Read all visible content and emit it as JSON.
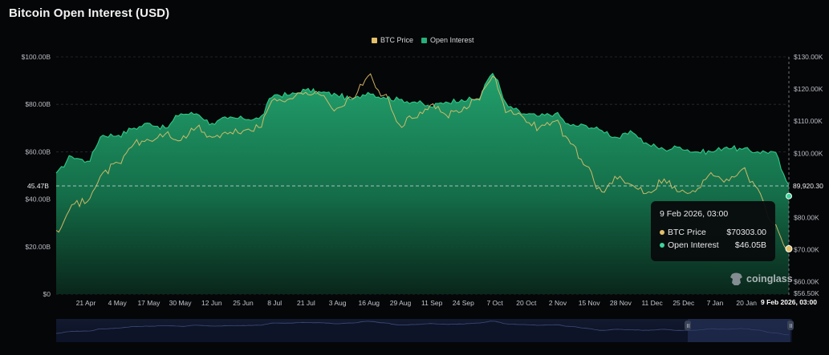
{
  "title": "Bitcoin Open Interest (USD)",
  "legend": [
    {
      "label": "BTC Price",
      "color": "#e2c06a"
    },
    {
      "label": "Open Interest",
      "color": "#26b07a"
    }
  ],
  "tooltip": {
    "date": "9 Feb 2026, 03:00",
    "rows": [
      {
        "label": "BTC Price",
        "value": "$70303.00",
        "color": "#e2c06a"
      },
      {
        "label": "Open Interest",
        "value": "$46.05B",
        "color": "#3fd49a"
      }
    ]
  },
  "crosshair": {
    "left_label": "45.47B",
    "right_label": "89,920.30",
    "x_label": "9 Feb 2026, 03:00"
  },
  "watermark": "coinglass",
  "chart_data": {
    "type": "area",
    "title": "Bitcoin Open Interest (USD)",
    "xlabel": "",
    "ylabel_left": "Open Interest (USD)",
    "ylabel_right": "BTC Price (USD)",
    "grid": true,
    "legend_position": "top-center",
    "left_axis": {
      "ticks": [
        "$0",
        "$20.00B",
        "$40.00B",
        "$60.00B",
        "$80.00B",
        "$100.00B"
      ],
      "tick_values": [
        0,
        20,
        40,
        60,
        80,
        100
      ],
      "ylim": [
        0,
        100
      ],
      "unit": "B USD"
    },
    "right_axis": {
      "ticks": [
        "$56.50K",
        "$60.00K",
        "$70.00K",
        "$80.00K",
        "$100.00K",
        "$110.00K",
        "$120.00K",
        "$130.00K"
      ],
      "tick_values": [
        56.5,
        60,
        70,
        80,
        100,
        110,
        120,
        130
      ],
      "ylim": [
        56.5,
        130
      ],
      "unit": "K USD"
    },
    "x_ticks": [
      "21 Apr",
      "4 May",
      "17 May",
      "30 May",
      "12 Jun",
      "25 Jun",
      "8 Jul",
      "21 Jul",
      "3 Aug",
      "16 Aug",
      "29 Aug",
      "11 Sep",
      "24 Sep",
      "7 Oct",
      "20 Oct",
      "2 Nov",
      "15 Nov",
      "28 Nov",
      "11 Dec",
      "25 Dec",
      "7 Jan",
      "20 Jan"
    ],
    "x": [
      "9 Apr",
      "14 Apr",
      "21 Apr",
      "28 Apr",
      "4 May",
      "10 May",
      "17 May",
      "24 May",
      "30 May",
      "6 Jun",
      "12 Jun",
      "19 Jun",
      "25 Jun",
      "2 Jul",
      "8 Jul",
      "15 Jul",
      "21 Jul",
      "28 Jul",
      "3 Aug",
      "10 Aug",
      "16 Aug",
      "23 Aug",
      "29 Aug",
      "5 Sep",
      "11 Sep",
      "18 Sep",
      "24 Sep",
      "1 Oct",
      "7 Oct",
      "11 Oct",
      "20 Oct",
      "27 Oct",
      "2 Nov",
      "9 Nov",
      "15 Nov",
      "21 Nov",
      "28 Nov",
      "4 Dec",
      "11 Dec",
      "18 Dec",
      "25 Dec",
      "1 Jan",
      "7 Jan",
      "14 Jan",
      "20 Jan",
      "27 Jan",
      "3 Feb",
      "9 Feb"
    ],
    "series": [
      {
        "name": "Open Interest",
        "axis": "left",
        "unit": "B USD",
        "color": "#26b07a",
        "values": [
          51,
          58,
          56,
          67,
          67,
          70,
          72,
          70,
          76,
          76,
          72,
          74,
          74,
          74,
          84,
          84,
          86,
          85,
          84,
          82,
          85,
          83,
          82,
          81,
          79,
          81,
          82,
          82,
          93,
          79,
          76,
          75,
          76,
          71,
          71,
          69,
          66,
          68,
          63,
          61,
          62,
          60,
          60,
          62,
          61,
          60,
          60,
          46.05
        ]
      },
      {
        "name": "BTC Price",
        "axis": "right",
        "unit": "K USD",
        "color": "#e2c06a",
        "values": [
          76,
          84,
          85,
          94,
          97,
          103,
          104,
          106,
          104,
          108,
          105,
          106,
          107,
          108,
          117,
          117,
          119,
          118,
          114,
          117,
          124,
          118,
          109,
          111,
          115,
          112,
          113,
          117,
          124,
          113,
          111,
          108,
          110,
          103,
          96,
          88,
          92,
          90,
          88,
          92,
          88,
          88,
          94,
          92,
          95,
          89,
          78,
          70.3
        ]
      }
    ]
  }
}
